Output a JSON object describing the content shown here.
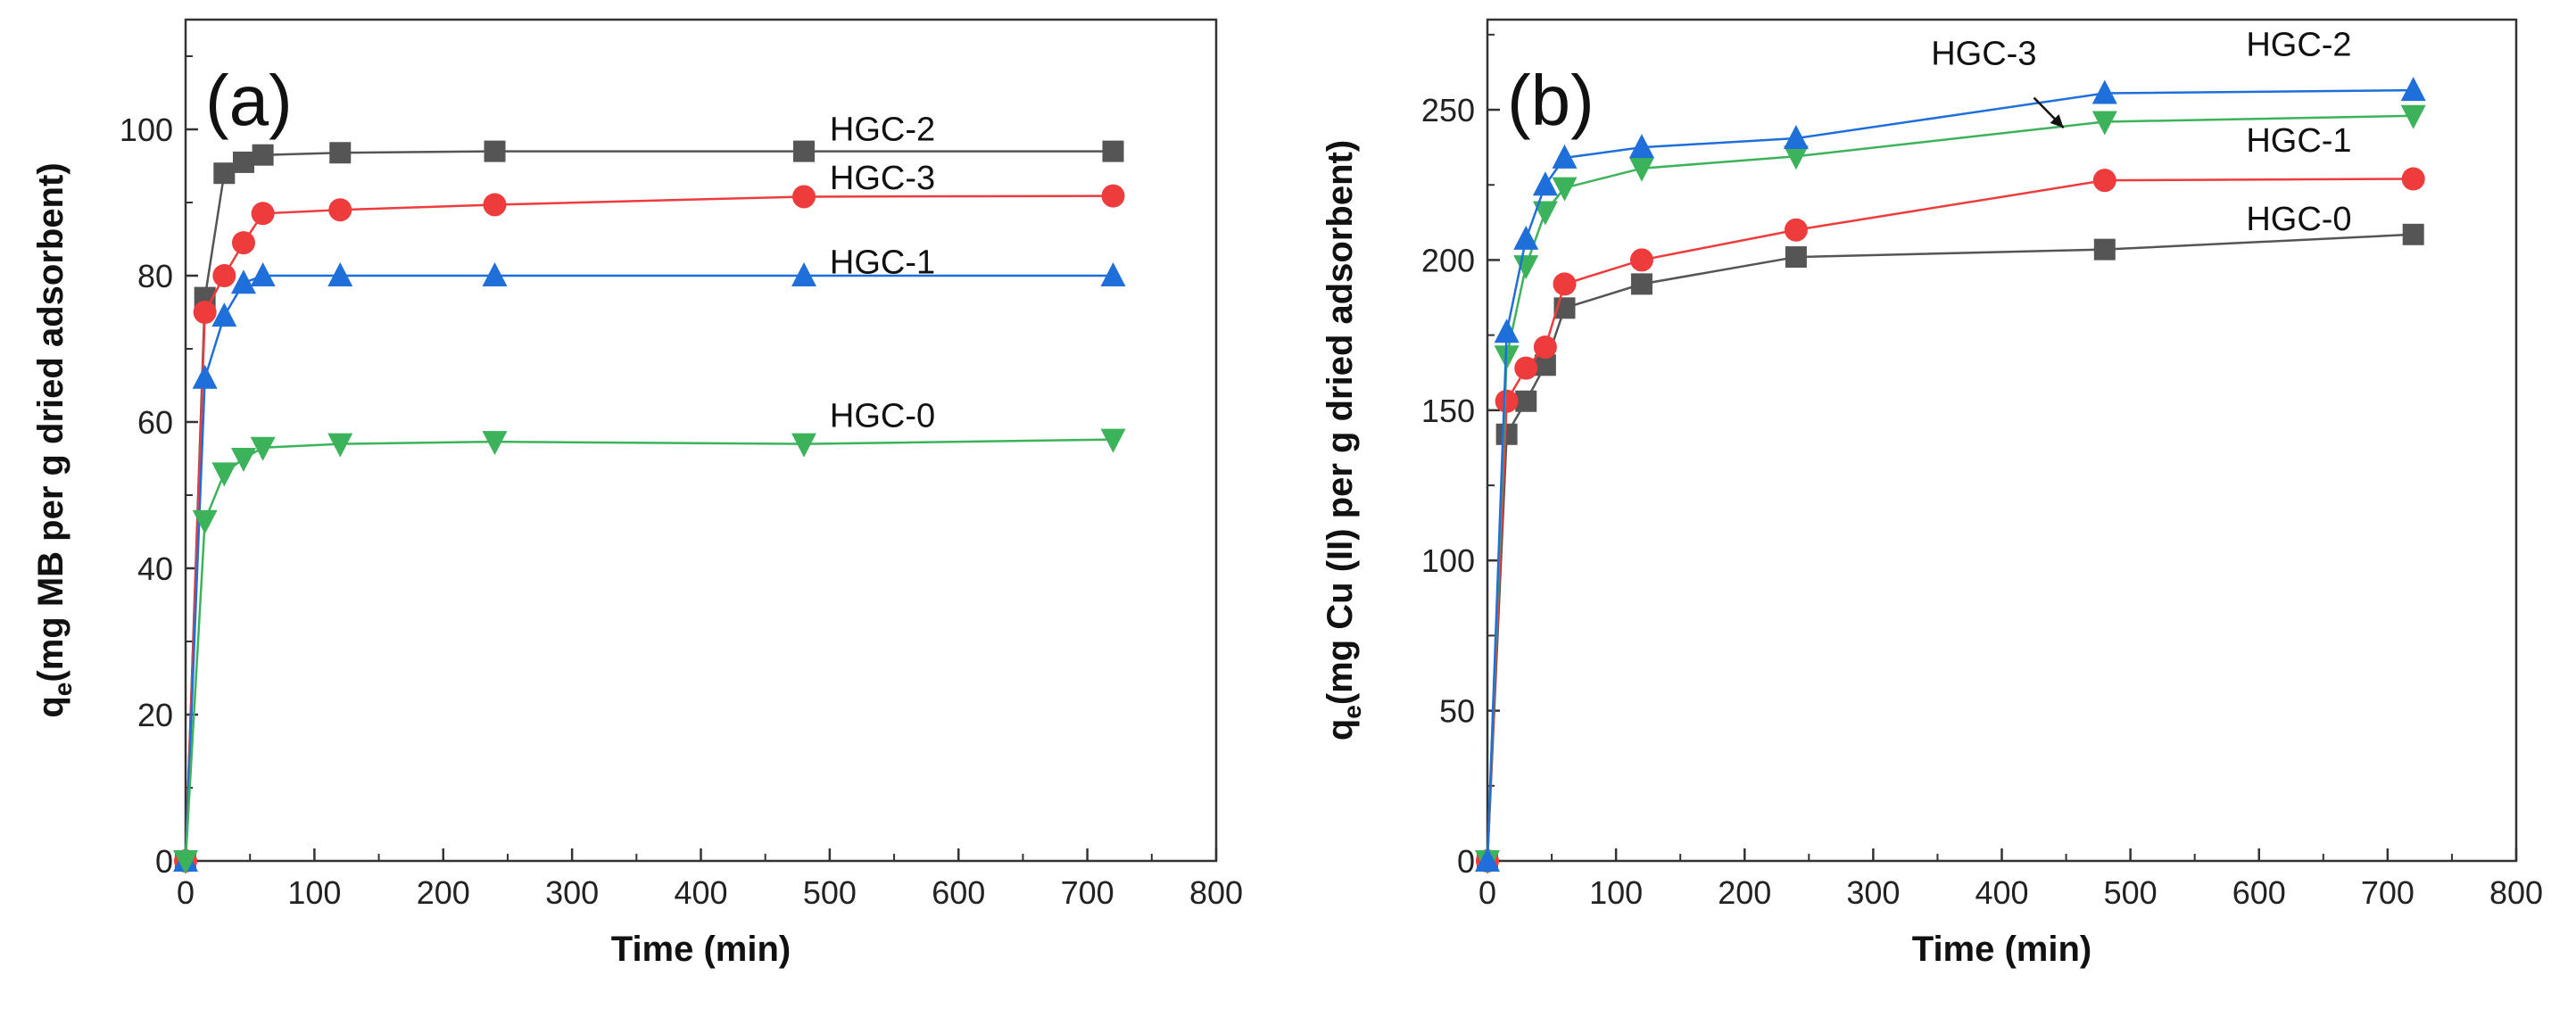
{
  "chart_data": [
    {
      "type": "line",
      "panel_label": "(a)",
      "title": "",
      "xlabel": "Time (min)",
      "ylabel": "q",
      "ylabel_subscript": "e",
      "ylabel_rest": "(mg MB per g dried adsorbent)",
      "xlim": [
        0,
        800
      ],
      "ylim": [
        0,
        115
      ],
      "xticks": [
        0,
        100,
        200,
        300,
        400,
        500,
        600,
        700,
        800
      ],
      "yticks": [
        0,
        20,
        40,
        60,
        80,
        100
      ],
      "grid": false,
      "legend": "inline labels",
      "x": [
        0,
        15,
        30,
        45,
        60,
        120,
        240,
        480,
        720
      ],
      "series": [
        {
          "name": "HGC-2",
          "color": "#555555",
          "marker": "square",
          "values": [
            0,
            77,
            94,
            95.5,
            96.5,
            96.8,
            97,
            97,
            97
          ]
        },
        {
          "name": "HGC-3",
          "color": "#ee3b3b",
          "marker": "circle",
          "values": [
            0,
            75,
            80,
            84.5,
            88.5,
            89,
            89.7,
            90.8,
            90.9
          ]
        },
        {
          "name": "HGC-1",
          "color": "#1e6fd9",
          "marker": "triangle-up",
          "values": [
            0,
            66,
            74.5,
            79,
            80,
            80,
            80,
            80,
            80
          ]
        },
        {
          "name": "HGC-0",
          "color": "#3cb35a",
          "marker": "triangle-down",
          "values": [
            0,
            46.5,
            53,
            55,
            56.5,
            57,
            57.3,
            57,
            57.6
          ]
        }
      ],
      "annotations": [
        {
          "text": "HGC-2",
          "x": 500,
          "y": 98.5
        },
        {
          "text": "HGC-3",
          "x": 500,
          "y": 91.8
        },
        {
          "text": "HGC-1",
          "x": 500,
          "y": 80.3
        },
        {
          "text": "HGC-0",
          "x": 500,
          "y": 59.3
        }
      ]
    },
    {
      "type": "line",
      "panel_label": "(b)",
      "title": "",
      "xlabel": "Time (min)",
      "ylabel": "q",
      "ylabel_subscript": "e",
      "ylabel_rest": "(mg Cu (II) per g dried adsorbent)",
      "xlim": [
        0,
        800
      ],
      "ylim": [
        0,
        280
      ],
      "xticks": [
        0,
        100,
        200,
        300,
        400,
        500,
        600,
        700,
        800
      ],
      "yticks": [
        0,
        50,
        100,
        150,
        200,
        250
      ],
      "grid": false,
      "legend": "inline labels",
      "x": [
        0,
        15,
        30,
        45,
        60,
        120,
        240,
        480,
        720
      ],
      "series": [
        {
          "name": "HGC-0",
          "color": "#555555",
          "marker": "square",
          "values": [
            0,
            142,
            153,
            165,
            184,
            192,
            201,
            203.5,
            208.5
          ]
        },
        {
          "name": "",
          "color": "#ee3b3b",
          "marker": "circle",
          "values": [
            0,
            153,
            164,
            171,
            192,
            200,
            210,
            226.5,
            227
          ]
        },
        {
          "name": "HGC-1",
          "color": "#3cb35a",
          "marker": "triangle-down",
          "values": [
            0,
            168,
            198,
            216,
            224,
            230.5,
            234.5,
            246,
            248
          ]
        },
        {
          "name": "HGC-2",
          "color": "#1e6fd9",
          "marker": "triangle-up",
          "values": [
            0,
            176,
            207,
            225,
            234,
            237.5,
            240.5,
            255.5,
            256.5
          ]
        }
      ],
      "annotations": [
        {
          "text": "HGC-3",
          "x": 345,
          "y": 265
        },
        {
          "text": "HGC-2",
          "x": 590,
          "y": 268
        },
        {
          "text": "HGC-1",
          "x": 590,
          "y": 236
        },
        {
          "text": "HGC-0",
          "x": 590,
          "y": 210
        }
      ],
      "arrow": {
        "from_x": 425,
        "from_y": 254,
        "to_x": 448,
        "to_y": 244
      }
    }
  ]
}
